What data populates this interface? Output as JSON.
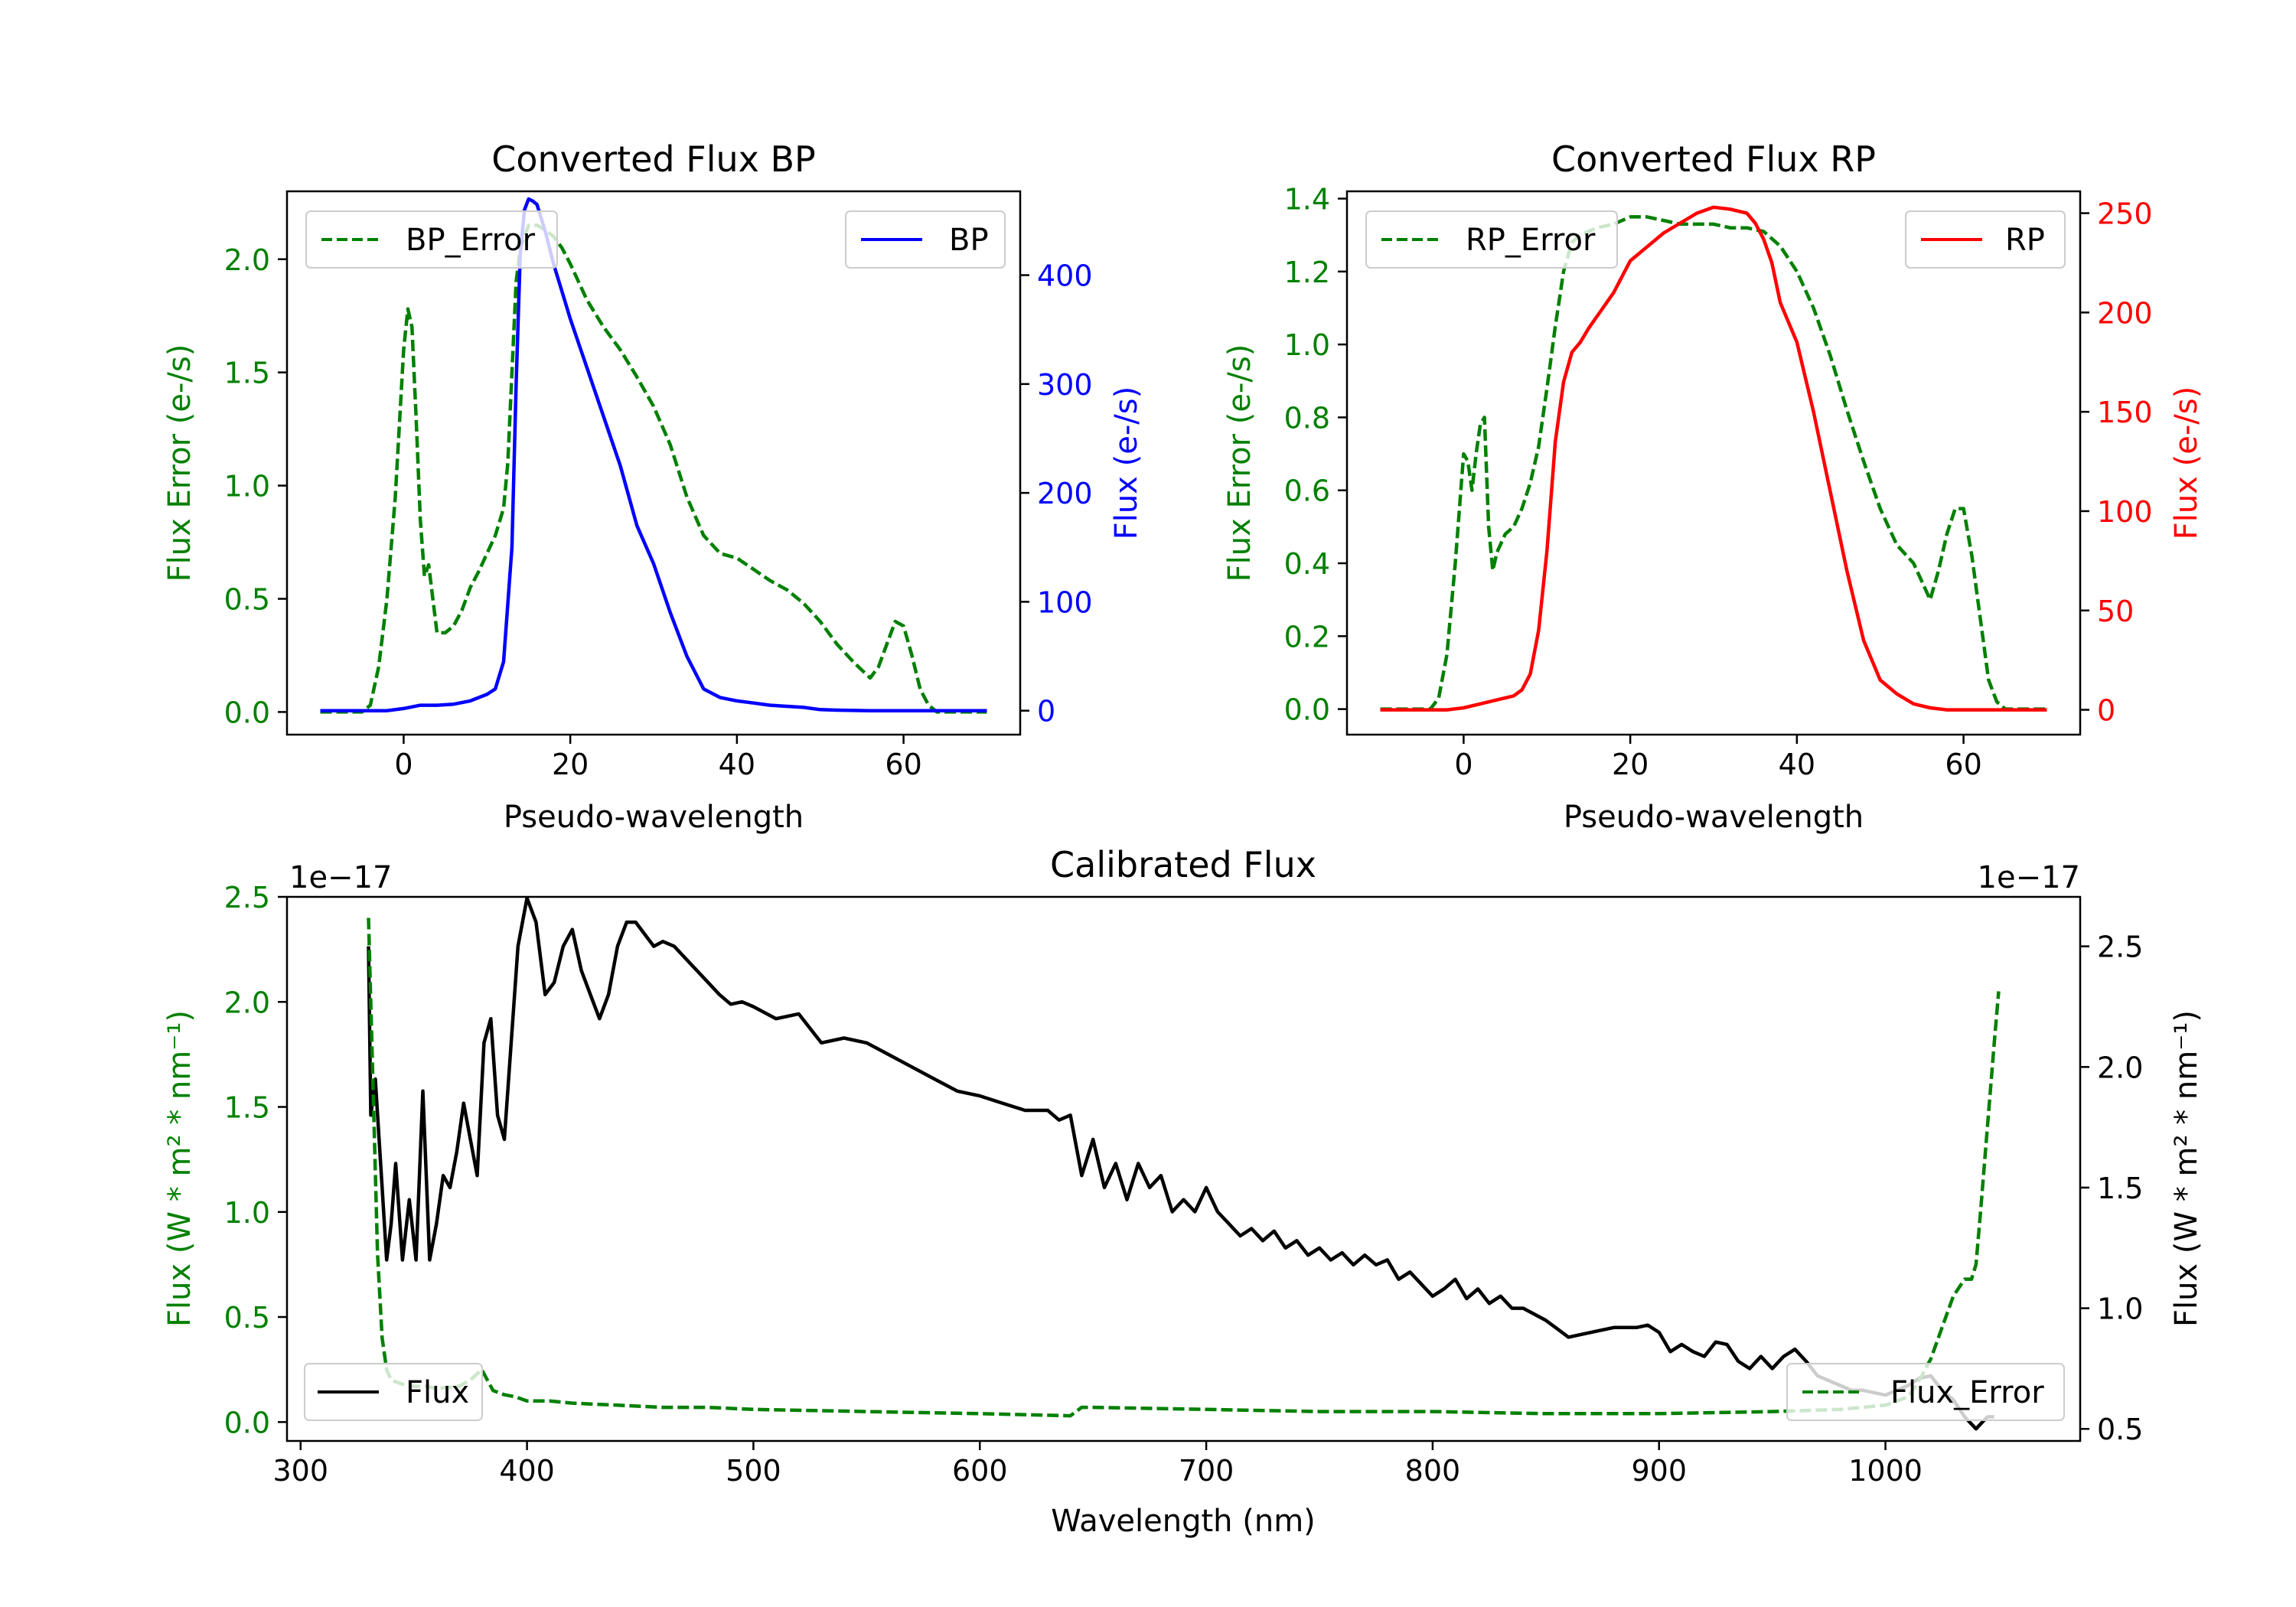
{
  "chart_data": [
    {
      "type": "line",
      "title": "Converted Flux BP",
      "xlabel": "Pseudo-wavelength",
      "ylabel_left": "Flux Error (e-/s)",
      "ylabel_right": "Flux (e-/s)",
      "xlim": [
        -14,
        74
      ],
      "ylim_left": [
        -0.1,
        2.3
      ],
      "ylim_right": [
        -22,
        477
      ],
      "xticks": [
        0,
        20,
        40,
        60
      ],
      "yticks_left": [
        0.0,
        0.5,
        1.0,
        1.5,
        2.0
      ],
      "yticks_right": [
        0,
        100,
        200,
        300,
        400
      ],
      "tick_labels_left": [
        "0.0",
        "0.5",
        "1.0",
        "1.5",
        "2.0"
      ],
      "tick_labels_right": [
        "0",
        "100",
        "200",
        "300",
        "400"
      ],
      "series": [
        {
          "name": "BP_Error",
          "axis": "left",
          "color": "#008000",
          "style": "dashed",
          "legend": "top-left",
          "x": [
            -10,
            -5,
            -4,
            -3,
            -2,
            -1,
            0,
            0.5,
            1,
            1.5,
            2,
            2.5,
            3,
            4,
            5,
            6,
            7,
            8,
            9,
            10,
            11,
            12,
            12.5,
            13,
            13.5,
            14,
            15,
            16,
            17,
            18,
            19,
            20,
            22,
            24,
            26,
            28,
            30,
            32,
            34,
            36,
            38,
            40,
            42,
            44,
            46,
            48,
            50,
            52,
            54,
            56,
            57,
            58,
            59,
            60,
            61,
            62,
            63,
            64,
            65,
            70
          ],
          "y": [
            0.0,
            0.0,
            0.03,
            0.2,
            0.5,
            0.95,
            1.6,
            1.78,
            1.7,
            1.3,
            0.85,
            0.6,
            0.65,
            0.35,
            0.35,
            0.38,
            0.45,
            0.55,
            0.62,
            0.7,
            0.78,
            0.9,
            1.1,
            1.5,
            1.9,
            2.05,
            2.15,
            2.15,
            2.13,
            2.1,
            2.05,
            1.98,
            1.82,
            1.7,
            1.6,
            1.48,
            1.35,
            1.18,
            0.95,
            0.78,
            0.7,
            0.68,
            0.63,
            0.58,
            0.54,
            0.48,
            0.4,
            0.3,
            0.22,
            0.15,
            0.2,
            0.3,
            0.4,
            0.38,
            0.25,
            0.1,
            0.03,
            0.0,
            0.0,
            0.0
          ]
        },
        {
          "name": "BP",
          "axis": "right",
          "color": "#0000ff",
          "style": "solid",
          "legend": "top-right",
          "x": [
            -10,
            -2,
            0,
            2,
            4,
            6,
            8,
            10,
            11,
            12,
            13,
            13.5,
            14,
            14.5,
            15,
            15.5,
            16,
            17,
            18,
            19,
            20,
            22,
            24,
            26,
            28,
            30,
            32,
            34,
            35,
            36,
            38,
            40,
            42,
            44,
            46,
            48,
            50,
            52,
            56,
            60,
            65,
            70
          ],
          "y": [
            0,
            0,
            2,
            5,
            5,
            6,
            9,
            15,
            20,
            45,
            150,
            300,
            420,
            460,
            470,
            468,
            465,
            440,
            410,
            385,
            360,
            315,
            270,
            225,
            170,
            135,
            90,
            50,
            35,
            20,
            12,
            9,
            7,
            5,
            4,
            3,
            1,
            0.5,
            0,
            0,
            0,
            0
          ]
        }
      ]
    },
    {
      "type": "line",
      "title": "Converted Flux RP",
      "xlabel": "Pseudo-wavelength",
      "ylabel_left": "Flux Error (e-/s)",
      "ylabel_right": "Flux (e-/s)",
      "xlim": [
        -14,
        74
      ],
      "ylim_left": [
        -0.07,
        1.42
      ],
      "ylim_right": [
        -12.5,
        261
      ],
      "xticks": [
        0,
        20,
        40,
        60
      ],
      "yticks_left": [
        0.0,
        0.2,
        0.4,
        0.6,
        0.8,
        1.0,
        1.2,
        1.4
      ],
      "yticks_right": [
        0,
        50,
        100,
        150,
        200,
        250
      ],
      "tick_labels_left": [
        "0.0",
        "0.2",
        "0.4",
        "0.6",
        "0.8",
        "1.0",
        "1.2",
        "1.4"
      ],
      "tick_labels_right": [
        "0",
        "50",
        "100",
        "150",
        "200",
        "250"
      ],
      "series": [
        {
          "name": "RP_Error",
          "axis": "left",
          "color": "#008000",
          "style": "dashed",
          "legend": "top-left",
          "x": [
            -10,
            -4,
            -3,
            -2,
            -1,
            0,
            0.5,
            1,
            1.5,
            2,
            2.5,
            3,
            3.5,
            4,
            5,
            6,
            7,
            8,
            9,
            10,
            11,
            12,
            13,
            14,
            16,
            18,
            20,
            22,
            24,
            26,
            28,
            30,
            32,
            34,
            36,
            38,
            40,
            42,
            44,
            46,
            48,
            50,
            52,
            54,
            55,
            56,
            57,
            58,
            59,
            60,
            61,
            62,
            63,
            64,
            65,
            70
          ],
          "y": [
            0.0,
            0.0,
            0.03,
            0.15,
            0.4,
            0.7,
            0.68,
            0.6,
            0.7,
            0.78,
            0.8,
            0.5,
            0.38,
            0.43,
            0.48,
            0.5,
            0.55,
            0.62,
            0.72,
            0.88,
            1.05,
            1.2,
            1.28,
            1.3,
            1.32,
            1.33,
            1.35,
            1.35,
            1.34,
            1.33,
            1.33,
            1.33,
            1.32,
            1.32,
            1.31,
            1.27,
            1.2,
            1.1,
            0.97,
            0.82,
            0.68,
            0.55,
            0.45,
            0.4,
            0.35,
            0.3,
            0.38,
            0.48,
            0.55,
            0.55,
            0.42,
            0.25,
            0.08,
            0.02,
            0.0,
            0.0
          ]
        },
        {
          "name": "RP",
          "axis": "right",
          "color": "#ff0000",
          "style": "solid",
          "legend": "top-right",
          "x": [
            -10,
            -5,
            -2,
            0,
            2,
            4,
            6,
            7,
            8,
            9,
            10,
            11,
            12,
            13,
            14,
            15,
            16,
            17,
            18,
            19,
            20,
            22,
            24,
            26,
            28,
            30,
            32,
            34,
            35,
            36,
            37,
            38,
            40,
            42,
            44,
            46,
            48,
            50,
            52,
            54,
            56,
            58,
            60,
            65,
            70
          ],
          "y": [
            0,
            0,
            0,
            1,
            3,
            5,
            7,
            10,
            18,
            40,
            80,
            135,
            165,
            180,
            185,
            192,
            198,
            204,
            210,
            218,
            226,
            233,
            240,
            245,
            250,
            253,
            252,
            250,
            245,
            237,
            225,
            205,
            185,
            150,
            110,
            70,
            35,
            15,
            8,
            3,
            1,
            0,
            0,
            0,
            0
          ]
        }
      ]
    },
    {
      "type": "line",
      "title": "Calibrated Flux",
      "xlabel": "Wavelength (nm)",
      "ylabel_left": "Flux (W * m² * nm⁻¹)",
      "ylabel_right": "Flux (W * m² * nm⁻¹)",
      "offset_left": "1e−17",
      "offset_right": "1e−17",
      "xlim": [
        294,
        1086
      ],
      "ylim_left": [
        -0.09,
        2.5
      ],
      "ylim_right": [
        0.45,
        2.705
      ],
      "xticks": [
        300,
        400,
        500,
        600,
        700,
        800,
        900,
        1000
      ],
      "yticks_left": [
        0.0,
        0.5,
        1.0,
        1.5,
        2.0,
        2.5
      ],
      "yticks_right": [
        0.5,
        1.0,
        1.5,
        2.0,
        2.5
      ],
      "tick_labels_left": [
        "0.0",
        "0.5",
        "1.0",
        "1.5",
        "2.0",
        "2.5"
      ],
      "tick_labels_right": [
        "0.5",
        "1.0",
        "1.5",
        "2.0",
        "2.5"
      ],
      "series": [
        {
          "name": "Flux",
          "axis": "right",
          "color": "#000000",
          "style": "solid",
          "legend": "bottom-left",
          "x": [
            330,
            331,
            333,
            336,
            338,
            340,
            342,
            345,
            348,
            351,
            354,
            357,
            360,
            363,
            366,
            369,
            372,
            375,
            378,
            381,
            384,
            387,
            390,
            393,
            396,
            400,
            404,
            408,
            412,
            416,
            420,
            424,
            428,
            432,
            436,
            440,
            444,
            448,
            452,
            456,
            460,
            465,
            470,
            475,
            480,
            485,
            490,
            495,
            500,
            510,
            520,
            530,
            540,
            550,
            560,
            570,
            580,
            590,
            600,
            610,
            620,
            630,
            635,
            640,
            645,
            650,
            655,
            660,
            665,
            670,
            675,
            680,
            685,
            690,
            695,
            700,
            705,
            710,
            715,
            720,
            725,
            730,
            735,
            740,
            745,
            750,
            755,
            760,
            765,
            770,
            775,
            780,
            785,
            790,
            795,
            800,
            805,
            810,
            815,
            820,
            825,
            830,
            835,
            840,
            850,
            860,
            870,
            880,
            890,
            895,
            900,
            905,
            910,
            915,
            920,
            925,
            930,
            935,
            940,
            945,
            950,
            955,
            960,
            965,
            970,
            975,
            980,
            985,
            990,
            995,
            1000,
            1005,
            1010,
            1015,
            1020,
            1025,
            1030,
            1035,
            1038,
            1040,
            1042,
            1045,
            1048
          ],
          "y": [
            2.5,
            1.8,
            1.95,
            1.5,
            1.2,
            1.35,
            1.6,
            1.2,
            1.45,
            1.2,
            1.9,
            1.2,
            1.35,
            1.55,
            1.5,
            1.65,
            1.85,
            1.7,
            1.55,
            2.1,
            2.2,
            1.8,
            1.7,
            2.1,
            2.5,
            2.7,
            2.6,
            2.3,
            2.35,
            2.5,
            2.57,
            2.4,
            2.3,
            2.2,
            2.3,
            2.5,
            2.6,
            2.6,
            2.55,
            2.5,
            2.52,
            2.5,
            2.45,
            2.4,
            2.35,
            2.3,
            2.26,
            2.27,
            2.25,
            2.2,
            2.22,
            2.1,
            2.12,
            2.1,
            2.05,
            2.0,
            1.95,
            1.9,
            1.88,
            1.85,
            1.82,
            1.82,
            1.78,
            1.8,
            1.55,
            1.7,
            1.5,
            1.6,
            1.45,
            1.6,
            1.5,
            1.55,
            1.4,
            1.45,
            1.4,
            1.5,
            1.4,
            1.35,
            1.3,
            1.33,
            1.28,
            1.32,
            1.25,
            1.28,
            1.22,
            1.25,
            1.2,
            1.23,
            1.18,
            1.22,
            1.18,
            1.2,
            1.12,
            1.15,
            1.1,
            1.05,
            1.08,
            1.12,
            1.04,
            1.08,
            1.02,
            1.05,
            1.0,
            1.0,
            0.95,
            0.88,
            0.9,
            0.92,
            0.92,
            0.93,
            0.9,
            0.82,
            0.85,
            0.82,
            0.8,
            0.86,
            0.85,
            0.78,
            0.75,
            0.8,
            0.75,
            0.8,
            0.83,
            0.78,
            0.72,
            0.7,
            0.68,
            0.66,
            0.66,
            0.65,
            0.64,
            0.66,
            0.68,
            0.71,
            0.72,
            0.66,
            0.62,
            0.55,
            0.52,
            0.5,
            0.52,
            0.55,
            0.55
          ]
        },
        {
          "name": "Flux_Error",
          "axis": "left",
          "color": "#008000",
          "style": "dashed",
          "legend": "bottom-right",
          "x": [
            330,
            332,
            334,
            336,
            338,
            340,
            345,
            350,
            355,
            360,
            370,
            375,
            380,
            385,
            390,
            395,
            400,
            410,
            420,
            440,
            460,
            480,
            500,
            550,
            600,
            640,
            645,
            650,
            700,
            750,
            800,
            850,
            900,
            950,
            980,
            1000,
            1010,
            1015,
            1020,
            1025,
            1030,
            1035,
            1038,
            1040,
            1042,
            1045,
            1048,
            1050
          ],
          "y": [
            2.4,
            1.6,
            0.8,
            0.4,
            0.25,
            0.2,
            0.18,
            0.17,
            0.17,
            0.16,
            0.17,
            0.2,
            0.25,
            0.15,
            0.13,
            0.12,
            0.1,
            0.1,
            0.09,
            0.08,
            0.07,
            0.07,
            0.06,
            0.05,
            0.04,
            0.03,
            0.07,
            0.07,
            0.06,
            0.05,
            0.05,
            0.04,
            0.04,
            0.05,
            0.06,
            0.08,
            0.12,
            0.2,
            0.3,
            0.45,
            0.6,
            0.68,
            0.68,
            0.75,
            1.0,
            1.4,
            1.8,
            2.05
          ]
        }
      ]
    }
  ]
}
